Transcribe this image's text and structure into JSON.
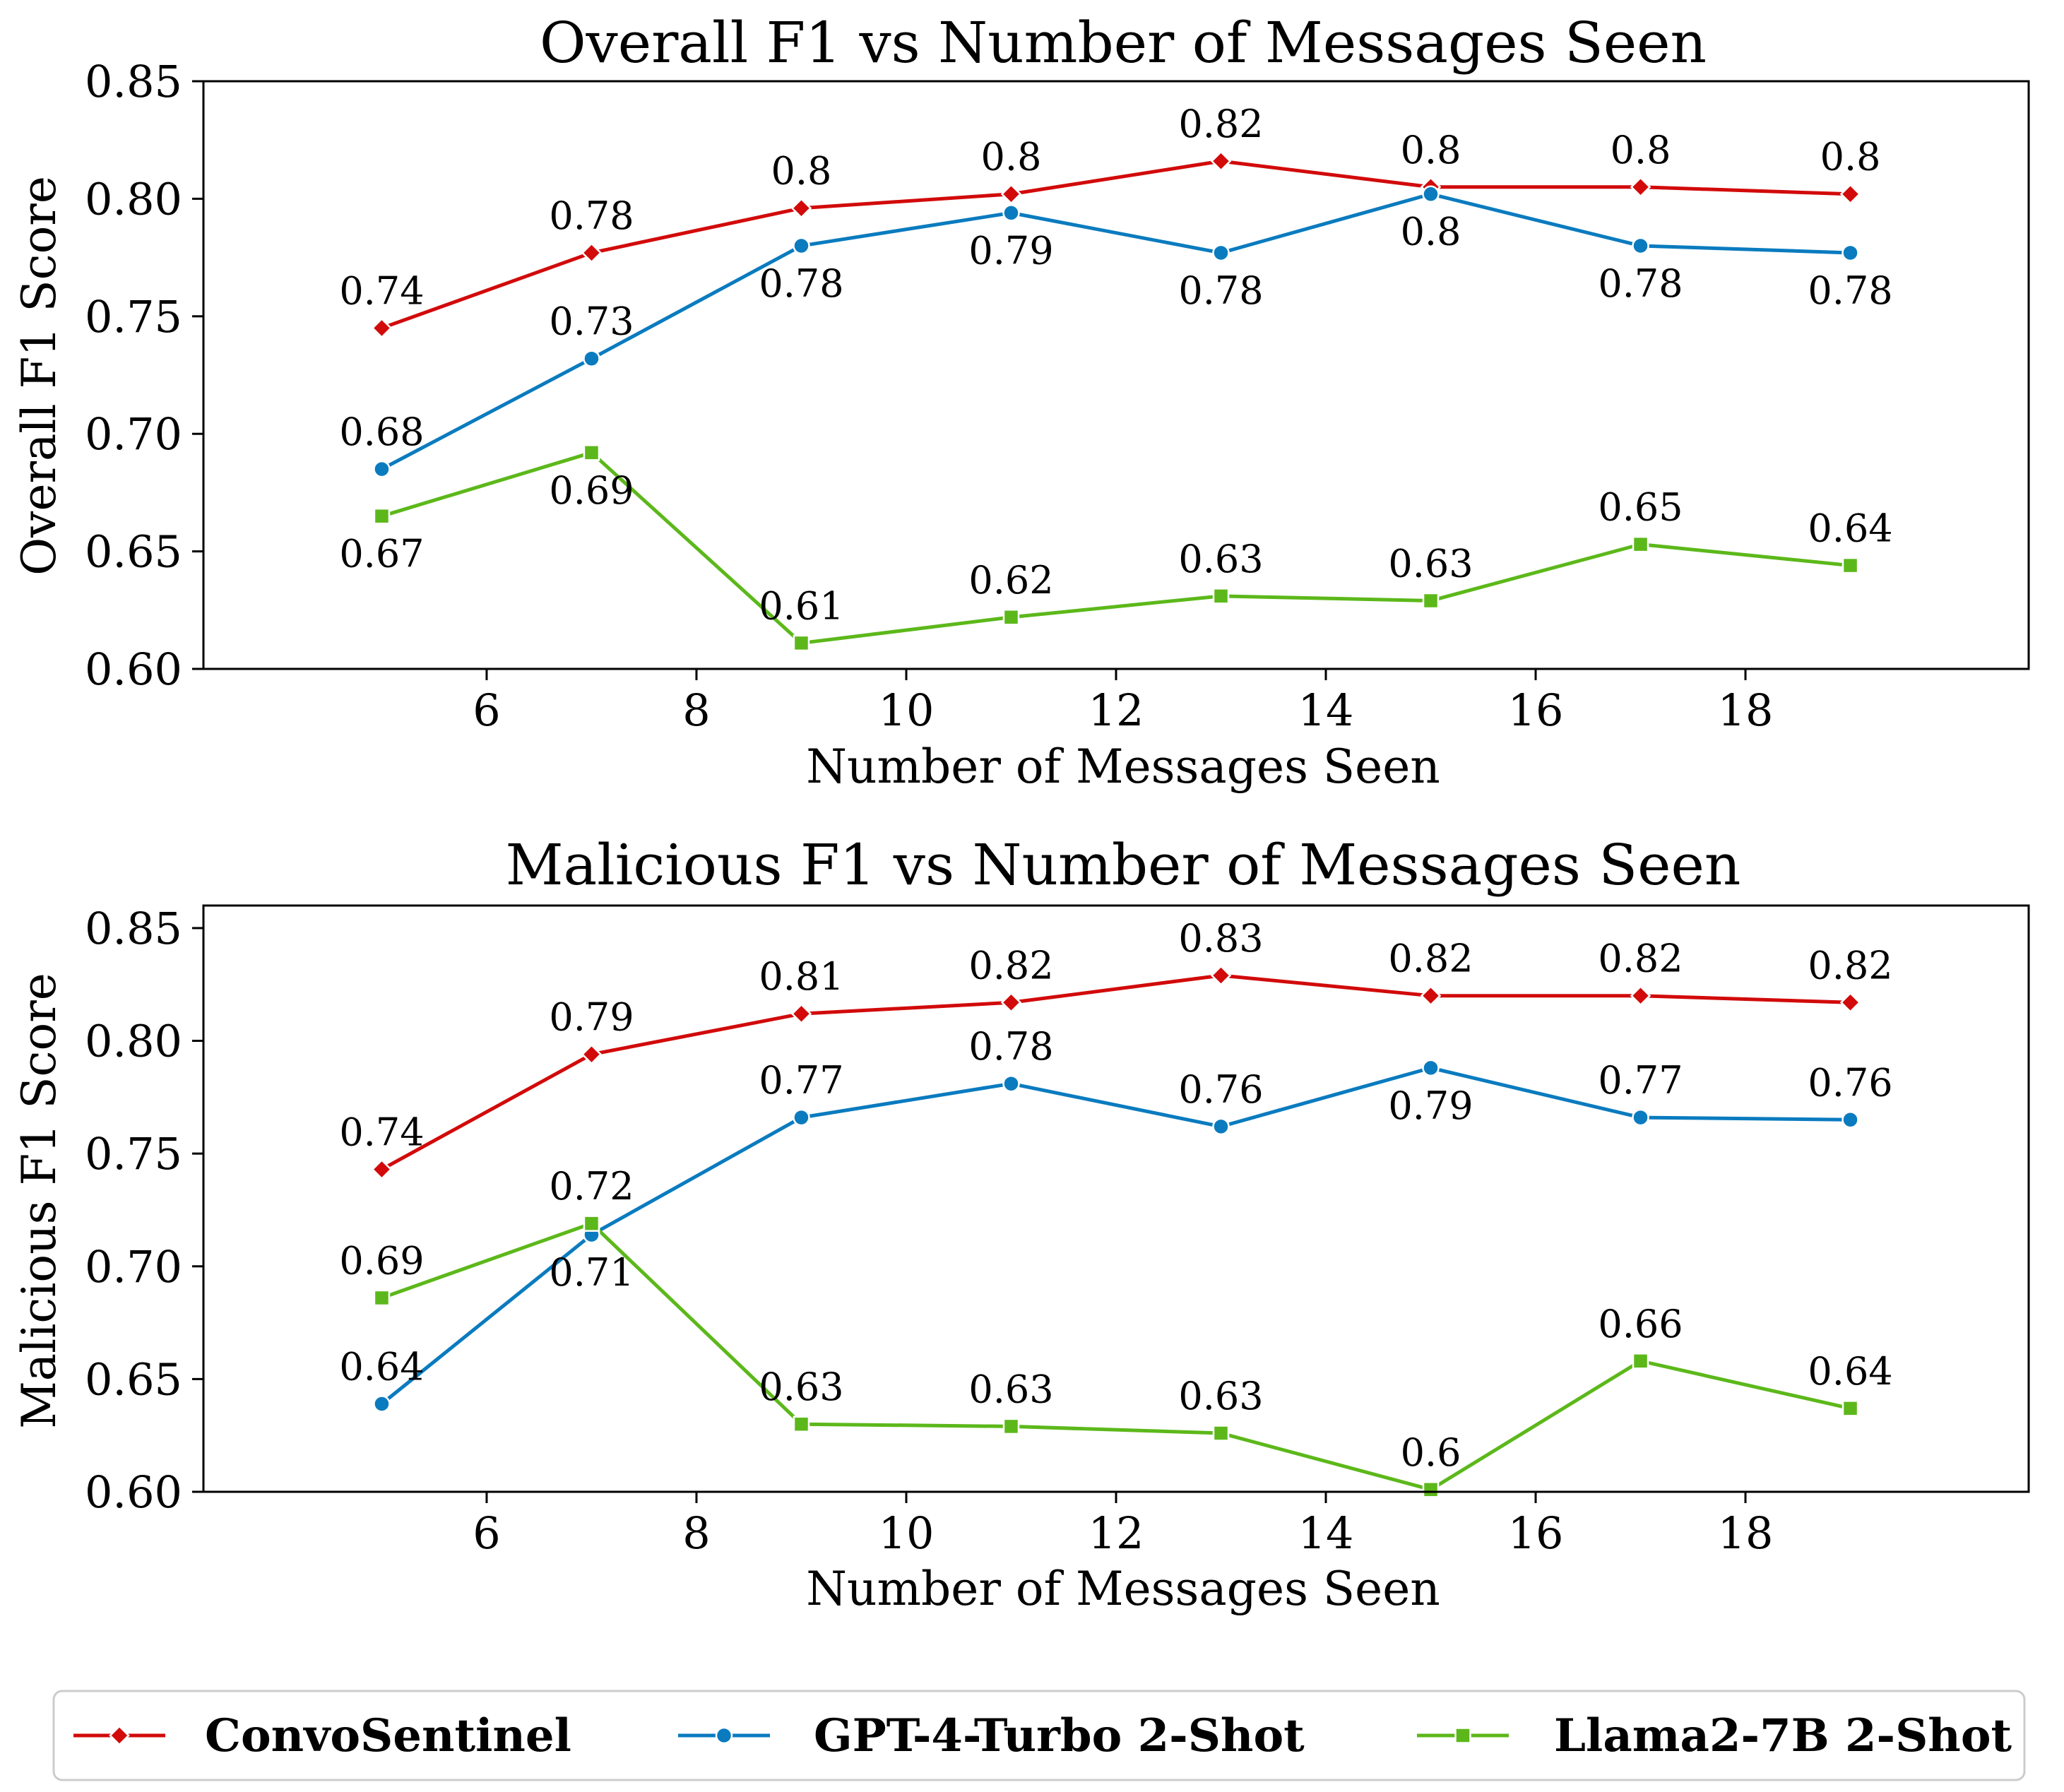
{
  "chart_data": [
    {
      "type": "line",
      "title": "Overall F1 vs Number of Messages Seen",
      "xlabel": "Number of Messages Seen",
      "ylabel": "Overall F1 Score",
      "x": [
        5,
        7,
        9,
        11,
        13,
        15,
        17,
        19
      ],
      "xlim": [
        3.3,
        20.7
      ],
      "ylim": [
        0.6,
        0.85
      ],
      "xticks": [
        6,
        8,
        10,
        12,
        14,
        16,
        18
      ],
      "xtick_labels": [
        "6",
        "8",
        "10",
        "12",
        "14",
        "16",
        "18"
      ],
      "yticks": [
        0.6,
        0.65,
        0.7,
        0.75,
        0.8,
        0.85
      ],
      "ytick_labels": [
        "0.60",
        "0.65",
        "0.70",
        "0.75",
        "0.80",
        "0.85"
      ],
      "grid": false,
      "series": [
        {
          "name": "ConvoSentinel",
          "marker": "diamond",
          "values": [
            0.745,
            0.777,
            0.796,
            0.802,
            0.816,
            0.805,
            0.805,
            0.802
          ],
          "labels": [
            "0.74",
            "0.78",
            "0.8",
            "0.8",
            "0.82",
            "0.8",
            "0.8",
            "0.8"
          ],
          "label_pos": [
            "above",
            "above",
            "above",
            "above",
            "above",
            "above",
            "above",
            "above"
          ]
        },
        {
          "name": "GPT-4-Turbo 2-Shot",
          "marker": "circle",
          "values": [
            0.685,
            0.732,
            0.78,
            0.794,
            0.777,
            0.802,
            0.78,
            0.777
          ],
          "labels": [
            "0.68",
            "0.73",
            "0.78",
            "0.79",
            "0.78",
            "0.8",
            "0.78",
            "0.78"
          ],
          "label_pos": [
            "above",
            "above",
            "below",
            "below",
            "below",
            "below",
            "below",
            "below"
          ]
        },
        {
          "name": "Llama2-7B 2-Shot",
          "marker": "square",
          "values": [
            0.665,
            0.692,
            0.611,
            0.622,
            0.631,
            0.629,
            0.653,
            0.644
          ],
          "labels": [
            "0.67",
            "0.69",
            "0.61",
            "0.62",
            "0.63",
            "0.63",
            "0.65",
            "0.64"
          ],
          "label_pos": [
            "below",
            "below",
            "above",
            "above",
            "above",
            "above",
            "above",
            "above"
          ]
        }
      ]
    },
    {
      "type": "line",
      "title": "Malicious F1 vs Number of Messages Seen",
      "xlabel": "Number of Messages Seen",
      "ylabel": "Malicious F1 Score",
      "x": [
        5,
        7,
        9,
        11,
        13,
        15,
        17,
        19
      ],
      "xlim": [
        3.3,
        20.7
      ],
      "ylim": [
        0.6,
        0.86
      ],
      "xticks": [
        6,
        8,
        10,
        12,
        14,
        16,
        18
      ],
      "xtick_labels": [
        "6",
        "8",
        "10",
        "12",
        "14",
        "16",
        "18"
      ],
      "yticks": [
        0.6,
        0.65,
        0.7,
        0.75,
        0.8,
        0.85
      ],
      "ytick_labels": [
        "0.60",
        "0.65",
        "0.70",
        "0.75",
        "0.80",
        "0.85"
      ],
      "grid": false,
      "series": [
        {
          "name": "ConvoSentinel",
          "marker": "diamond",
          "values": [
            0.743,
            0.794,
            0.812,
            0.817,
            0.829,
            0.82,
            0.82,
            0.817
          ],
          "labels": [
            "0.74",
            "0.79",
            "0.81",
            "0.82",
            "0.83",
            "0.82",
            "0.82",
            "0.82"
          ],
          "label_pos": [
            "above",
            "above",
            "above",
            "above",
            "above",
            "above",
            "above",
            "above"
          ]
        },
        {
          "name": "GPT-4-Turbo 2-Shot",
          "marker": "circle",
          "values": [
            0.639,
            0.714,
            0.766,
            0.781,
            0.762,
            0.788,
            0.766,
            0.765
          ],
          "labels": [
            "0.64",
            "0.71",
            "0.77",
            "0.78",
            "0.76",
            "0.79",
            "0.77",
            "0.76"
          ],
          "label_pos": [
            "above",
            "below",
            "above",
            "above",
            "above",
            "below",
            "above",
            "above"
          ]
        },
        {
          "name": "Llama2-7B 2-Shot",
          "marker": "square",
          "values": [
            0.686,
            0.719,
            0.63,
            0.629,
            0.626,
            0.601,
            0.658,
            0.637
          ],
          "labels": [
            "0.69",
            "0.72",
            "0.63",
            "0.63",
            "0.63",
            "0.6",
            "0.66",
            "0.64"
          ],
          "label_pos": [
            "above",
            "above",
            "above",
            "above",
            "above",
            "above",
            "above",
            "above"
          ]
        }
      ]
    }
  ],
  "legend": {
    "position": "bottom-center",
    "entries": [
      {
        "name": "ConvoSentinel",
        "marker": "diamond"
      },
      {
        "name": "GPT-4-Turbo 2-Shot",
        "marker": "circle"
      },
      {
        "name": "Llama2-7B 2-Shot",
        "marker": "square"
      }
    ]
  },
  "colors": {
    "ConvoSentinel": "#d20a0a",
    "GPT-4-Turbo 2-Shot": "#0a7bbf",
    "Llama2-7B 2-Shot": "#5cb81a",
    "axes": "#000000",
    "legend_border": "#cccccc"
  }
}
